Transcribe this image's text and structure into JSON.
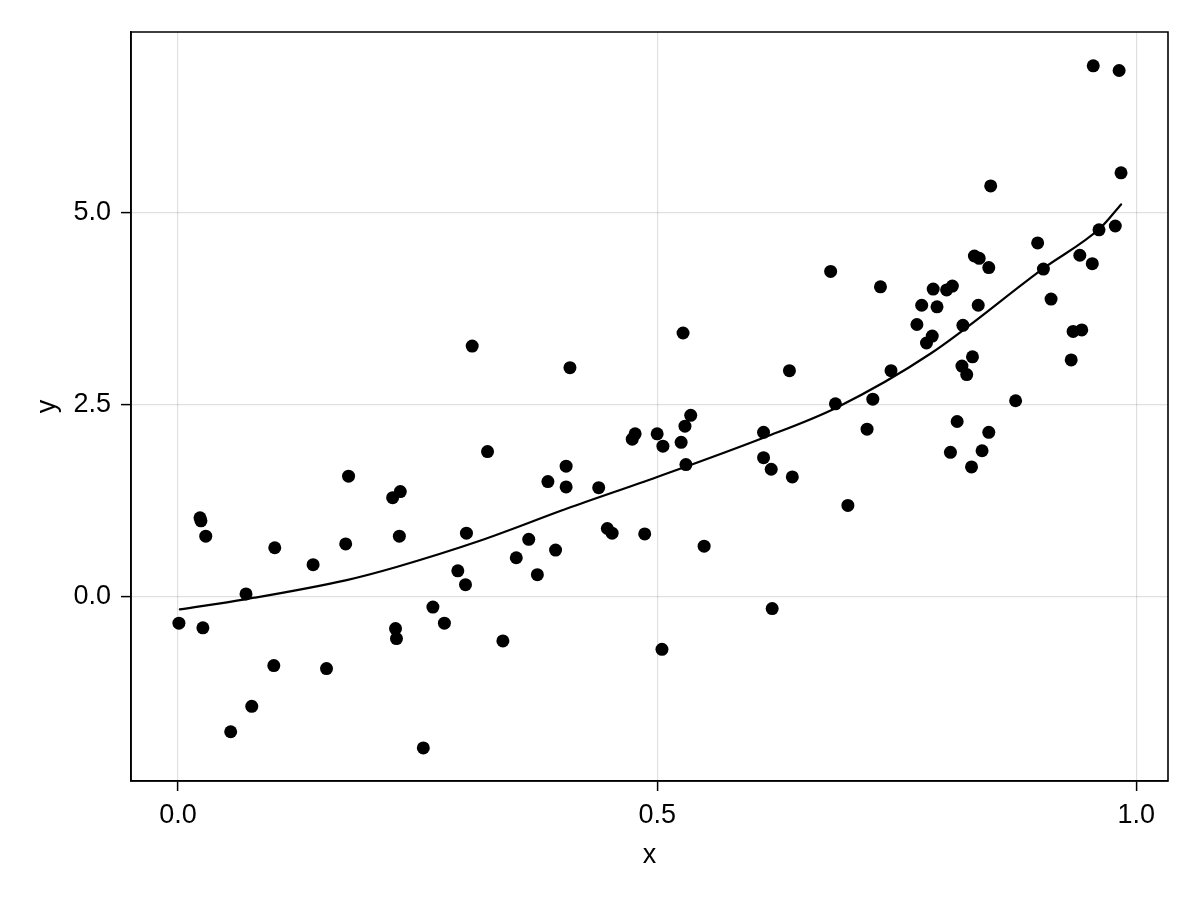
{
  "chart_data": {
    "type": "scatter",
    "xlabel": "x",
    "ylabel": "y",
    "xlim": [
      -0.049,
      1.033
    ],
    "ylim": [
      -2.39,
      7.34
    ],
    "xticks": [
      {
        "value": 0,
        "label": "0.0"
      },
      0.5,
      {
        "value": 1,
        "label": "1.0"
      }
    ],
    "yticks": [
      {
        "value": 0,
        "label": "0.0"
      },
      2.5,
      {
        "value": 5,
        "label": "5.0"
      }
    ],
    "grid": true,
    "series": [
      {
        "color": "#000000",
        "marker": "circle",
        "x": [
          0.001,
          0.023,
          0.024,
          0.029,
          0.026,
          0.071,
          0.055,
          0.077,
          0.101,
          0.1,
          0.141,
          0.155,
          0.175,
          0.178,
          0.224,
          0.232,
          0.231,
          0.227,
          0.228,
          0.256,
          0.266,
          0.278,
          0.292,
          0.301,
          0.3,
          0.307,
          0.323,
          0.339,
          0.353,
          0.366,
          0.375,
          0.386,
          0.394,
          0.405,
          0.405,
          0.409,
          0.439,
          0.448,
          0.453,
          0.474,
          0.477,
          0.487,
          0.5,
          0.506,
          0.505,
          0.527,
          0.525,
          0.529,
          0.535,
          0.53,
          0.549,
          0.611,
          0.611,
          0.619,
          0.62,
          0.641,
          0.638,
          0.681,
          0.686,
          0.699,
          0.719,
          0.725,
          0.733,
          0.744,
          0.771,
          0.776,
          0.781,
          0.787,
          0.788,
          0.792,
          0.802,
          0.808,
          0.806,
          0.813,
          0.818,
          0.819,
          0.823,
          0.828,
          0.829,
          0.831,
          0.836,
          0.835,
          0.839,
          0.846,
          0.846,
          0.848,
          0.874,
          0.897,
          0.903,
          0.911,
          0.932,
          0.934,
          0.941,
          0.943,
          0.954,
          0.955,
          0.961,
          0.978,
          0.982,
          0.984
        ],
        "values": [
          -0.34,
          1.03,
          0.99,
          0.79,
          -0.4,
          0.04,
          -1.75,
          -1.42,
          0.64,
          -0.89,
          0.42,
          -0.93,
          0.69,
          1.57,
          1.29,
          1.37,
          0.79,
          -0.41,
          -0.54,
          -1.96,
          -0.13,
          -0.34,
          0.34,
          0.83,
          0.16,
          3.26,
          1.89,
          -0.57,
          0.51,
          0.75,
          0.29,
          1.5,
          0.61,
          1.7,
          1.43,
          2.98,
          1.42,
          0.89,
          0.83,
          2.05,
          2.12,
          0.82,
          2.12,
          1.96,
          -0.68,
          3.43,
          2.01,
          2.22,
          2.36,
          1.72,
          0.66,
          2.14,
          1.81,
          1.66,
          -0.15,
          1.56,
          2.94,
          4.23,
          2.51,
          1.19,
          2.18,
          2.57,
          4.03,
          2.94,
          3.54,
          3.79,
          3.3,
          3.39,
          4.0,
          3.77,
          3.99,
          4.04,
          1.88,
          2.28,
          3.0,
          3.53,
          2.89,
          1.69,
          3.12,
          4.43,
          4.4,
          3.79,
          1.9,
          4.28,
          2.14,
          5.34,
          2.55,
          4.6,
          4.26,
          3.87,
          3.08,
          3.45,
          4.44,
          3.47,
          4.33,
          6.9,
          4.77,
          4.82,
          6.84,
          5.51
        ]
      },
      {
        "type": "line",
        "color": "#000000",
        "marker": "none",
        "line_style": "solid",
        "x": [
          0.002,
          0.07,
          0.176,
          0.228,
          0.315,
          0.406,
          0.5,
          0.611,
          0.687,
          0.785,
          0.903,
          0.962,
          0.984
        ],
        "values": [
          -0.16,
          -0.03,
          0.22,
          0.39,
          0.73,
          1.15,
          1.56,
          2.07,
          2.46,
          3.16,
          4.27,
          4.79,
          5.1
        ]
      }
    ]
  }
}
